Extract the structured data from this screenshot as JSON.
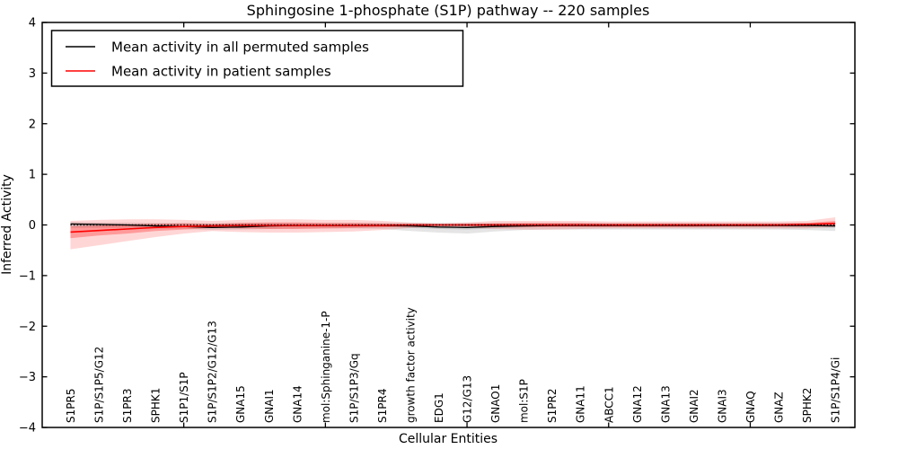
{
  "chart_data": {
    "type": "line",
    "title": "Sphingosine 1-phosphate (S1P) pathway -- 220 samples",
    "xlabel": "Cellular Entities",
    "ylabel": "Inferred Activity",
    "ylim": [
      -4,
      4
    ],
    "yticks": [
      4,
      3,
      2,
      1,
      0,
      -1,
      -2,
      -3,
      -4
    ],
    "grid": false,
    "legend_position": "upper left",
    "major_tick_categories": [
      4,
      9,
      14,
      19,
      24
    ],
    "categories": [
      "S1PR5",
      "S1P/S1P5/G12",
      "S1PR3",
      "SPHK1",
      "S1P1/S1P",
      "S1P/S1P2/G12/G13",
      "GNA15",
      "GNAI1",
      "GNA14",
      "mol:Sphinganine-1-P",
      "S1P/S1P3/Gq",
      "S1PR4",
      "growth factor activity",
      "EDG1",
      "G12/G13",
      "GNAO1",
      "mol:S1P",
      "S1PR2",
      "GNA11",
      "ABCC1",
      "GNA12",
      "GNA13",
      "GNAI2",
      "GNAI3",
      "GNAQ",
      "GNAZ",
      "SPHK2",
      "S1P/S1P4/Gi"
    ],
    "series": [
      {
        "name": "Mean activity in all permuted samples",
        "color": "#000000",
        "values": [
          0.02,
          0.01,
          0.0,
          -0.02,
          -0.03,
          -0.05,
          -0.04,
          -0.02,
          -0.01,
          -0.01,
          -0.01,
          -0.01,
          -0.02,
          -0.04,
          -0.05,
          -0.03,
          -0.02,
          -0.01,
          -0.01,
          -0.01,
          -0.01,
          -0.01,
          -0.01,
          -0.01,
          -0.01,
          -0.01,
          -0.01,
          -0.02
        ]
      },
      {
        "name": "Mean activity in patient samples",
        "color": "#ff0000",
        "values": [
          -0.14,
          -0.11,
          -0.08,
          -0.05,
          -0.03,
          -0.02,
          -0.01,
          -0.01,
          -0.01,
          -0.01,
          -0.01,
          -0.01,
          0.0,
          0.0,
          0.0,
          0.0,
          0.0,
          0.0,
          0.0,
          0.0,
          0.0,
          0.0,
          0.0,
          0.0,
          0.0,
          0.0,
          0.01,
          0.03
        ]
      }
    ],
    "bands": [
      {
        "name": "permuted-outer-band",
        "color": "#000000",
        "opacity": 0.1,
        "hi": [
          0.06,
          0.05,
          0.05,
          0.04,
          0.04,
          0.03,
          0.04,
          0.04,
          0.04,
          0.04,
          0.04,
          0.04,
          0.04,
          0.04,
          0.04,
          0.04,
          0.04,
          0.04,
          0.04,
          0.04,
          0.04,
          0.04,
          0.04,
          0.04,
          0.04,
          0.04,
          0.04,
          0.05
        ],
        "lo": [
          -0.06,
          -0.06,
          -0.06,
          -0.07,
          -0.08,
          -0.1,
          -0.09,
          -0.08,
          -0.07,
          -0.07,
          -0.07,
          -0.08,
          -0.12,
          -0.15,
          -0.17,
          -0.13,
          -0.1,
          -0.09,
          -0.09,
          -0.09,
          -0.09,
          -0.09,
          -0.09,
          -0.09,
          -0.09,
          -0.09,
          -0.1,
          -0.12
        ]
      },
      {
        "name": "permuted-inner-band",
        "color": "#000000",
        "opacity": 0.1,
        "hi": [
          0.03,
          0.03,
          0.02,
          0.02,
          0.02,
          0.01,
          0.02,
          0.02,
          0.02,
          0.02,
          0.02,
          0.02,
          0.02,
          0.02,
          0.02,
          0.02,
          0.02,
          0.02,
          0.02,
          0.02,
          0.02,
          0.02,
          0.02,
          0.02,
          0.02,
          0.02,
          0.02,
          0.02
        ],
        "lo": [
          -0.03,
          -0.03,
          -0.03,
          -0.04,
          -0.05,
          -0.06,
          -0.05,
          -0.04,
          -0.04,
          -0.04,
          -0.04,
          -0.04,
          -0.06,
          -0.08,
          -0.09,
          -0.07,
          -0.05,
          -0.04,
          -0.04,
          -0.04,
          -0.04,
          -0.04,
          -0.04,
          -0.04,
          -0.04,
          -0.04,
          -0.05,
          -0.06
        ]
      },
      {
        "name": "patient-outer-band",
        "color": "#ff0000",
        "opacity": 0.16,
        "hi": [
          0.08,
          0.1,
          0.11,
          0.11,
          0.1,
          0.08,
          0.1,
          0.11,
          0.11,
          0.1,
          0.1,
          0.08,
          0.05,
          0.03,
          0.05,
          0.08,
          0.08,
          0.08,
          0.08,
          0.07,
          0.07,
          0.07,
          0.07,
          0.07,
          0.07,
          0.07,
          0.08,
          0.15
        ],
        "lo": [
          -0.48,
          -0.4,
          -0.32,
          -0.24,
          -0.17,
          -0.12,
          -0.14,
          -0.15,
          -0.15,
          -0.14,
          -0.13,
          -0.1,
          -0.06,
          -0.03,
          -0.05,
          -0.08,
          -0.09,
          -0.09,
          -0.08,
          -0.07,
          -0.07,
          -0.07,
          -0.07,
          -0.07,
          -0.07,
          -0.07,
          -0.07,
          -0.04
        ],
        "note": "shaded uncertainty band around patient mean"
      },
      {
        "name": "patient-inner-band",
        "color": "#ff0000",
        "opacity": 0.28,
        "hi": [
          -0.03,
          -0.01,
          0.01,
          0.02,
          0.03,
          0.02,
          0.04,
          0.05,
          0.05,
          0.04,
          0.04,
          0.03,
          0.02,
          0.01,
          0.02,
          0.03,
          0.04,
          0.04,
          0.04,
          0.03,
          0.03,
          0.03,
          0.03,
          0.03,
          0.03,
          0.03,
          0.04,
          0.08
        ],
        "lo": [
          -0.26,
          -0.21,
          -0.17,
          -0.12,
          -0.09,
          -0.06,
          -0.07,
          -0.08,
          -0.08,
          -0.07,
          -0.06,
          -0.05,
          -0.03,
          -0.01,
          -0.02,
          -0.04,
          -0.04,
          -0.04,
          -0.04,
          -0.04,
          -0.04,
          -0.04,
          -0.04,
          -0.03,
          -0.03,
          -0.03,
          -0.03,
          -0.01
        ]
      }
    ],
    "zero_line": {
      "value": 0,
      "style": "dotted",
      "color": "#000000"
    }
  }
}
